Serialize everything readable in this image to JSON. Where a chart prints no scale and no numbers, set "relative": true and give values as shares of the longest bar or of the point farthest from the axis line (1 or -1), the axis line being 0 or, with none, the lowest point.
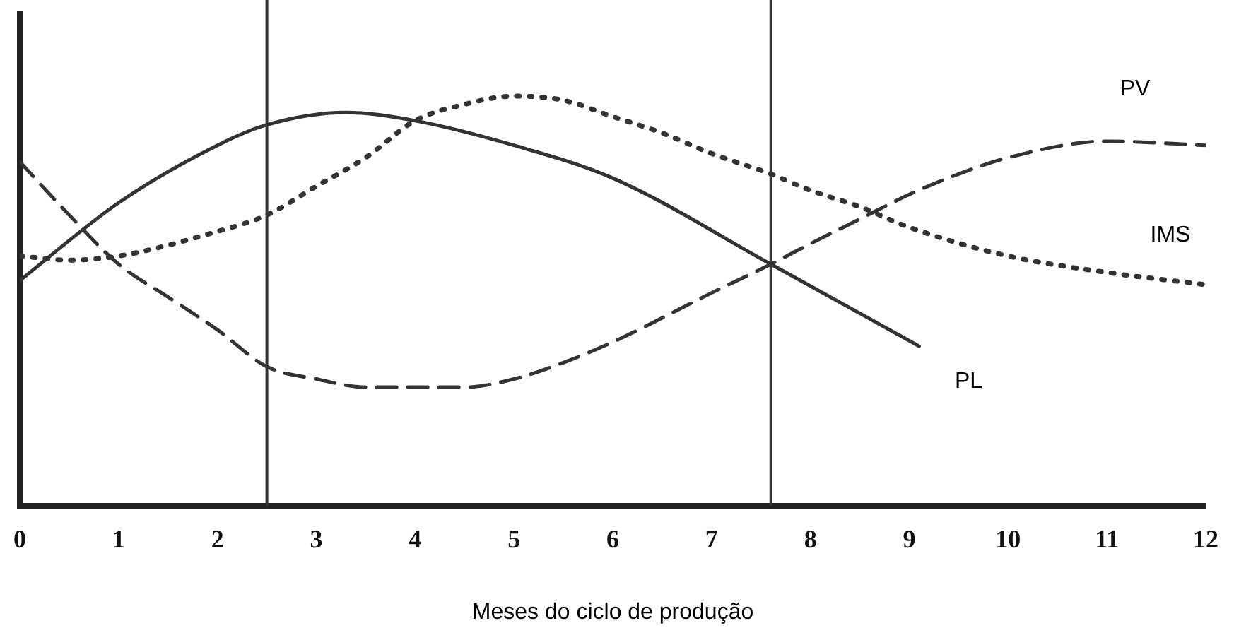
{
  "chart_data": {
    "type": "line",
    "relative": true,
    "xlabel": "Meses do ciclo de produção",
    "xlim": [
      0,
      12
    ],
    "xticks": [
      0,
      1,
      2,
      3,
      4,
      5,
      6,
      7,
      8,
      9,
      10,
      11,
      12
    ],
    "grid": false,
    "legend": false,
    "marker": "none",
    "ref_lines": [
      {
        "axis": "x",
        "value": 2.5,
        "color": "#333333"
      },
      {
        "axis": "x",
        "value": 7.6,
        "color": "#333333"
      }
    ],
    "series": [
      {
        "name": "PV",
        "color": "#333333",
        "line_style": "dashed",
        "x": [
          0,
          0.5,
          1,
          1.5,
          2,
          2.5,
          3,
          3.5,
          4,
          4.5,
          5,
          5.5,
          6,
          7,
          7.6,
          8,
          8.5,
          9,
          9.5,
          10,
          11,
          12
        ],
        "values": [
          0.84,
          0.71,
          0.59,
          0.51,
          0.43,
          0.34,
          0.31,
          0.29,
          0.29,
          0.29,
          0.31,
          0.35,
          0.4,
          0.52,
          0.59,
          0.64,
          0.7,
          0.76,
          0.81,
          0.85,
          0.89,
          0.88
        ]
      },
      {
        "name": "IMS",
        "color": "#333333",
        "line_style": "dotted",
        "x": [
          0,
          0.5,
          1,
          2,
          2.5,
          3,
          3.5,
          4,
          4.5,
          5,
          5.5,
          6,
          6.5,
          7,
          7.6,
          8,
          8.5,
          9,
          10,
          11,
          12
        ],
        "values": [
          0.61,
          0.6,
          0.61,
          0.67,
          0.71,
          0.78,
          0.85,
          0.94,
          0.98,
          1,
          0.99,
          0.95,
          0.91,
          0.86,
          0.81,
          0.77,
          0.73,
          0.68,
          0.61,
          0.57,
          0.54
        ]
      },
      {
        "name": "PL",
        "color": "#333333",
        "line_style": "solid",
        "x": [
          0,
          1,
          2,
          2.5,
          3.3,
          4,
          5,
          6,
          7.6,
          9.1
        ],
        "values": [
          0.55,
          0.74,
          0.88,
          0.93,
          0.96,
          0.94,
          0.88,
          0.8,
          0.59,
          0.39
        ]
      }
    ]
  }
}
